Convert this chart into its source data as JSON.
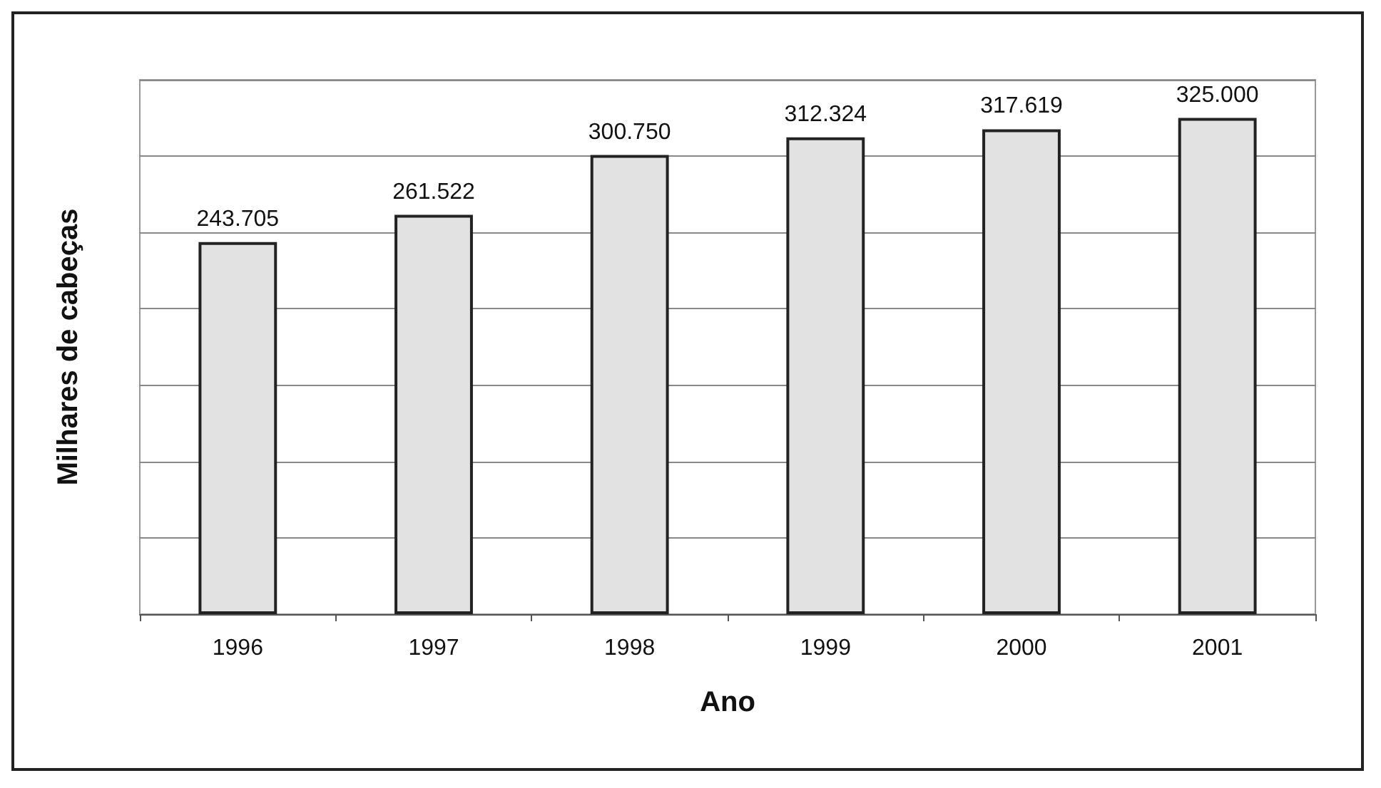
{
  "chart_data": {
    "type": "bar",
    "xlabel": "Ano",
    "ylabel": "Milhares de cabeças",
    "categories": [
      "1996",
      "1997",
      "1998",
      "1999",
      "2000",
      "2001"
    ],
    "values": [
      243.705,
      261.522,
      300.75,
      312.324,
      317.619,
      325
    ],
    "value_labels": [
      "243.705",
      "261.522",
      "300.750",
      "312.324",
      "317.619",
      "325.000"
    ],
    "color": "#e2e2e2",
    "ylim": [
      0,
      350
    ],
    "tick_labels": "x",
    "grid": "y"
  }
}
